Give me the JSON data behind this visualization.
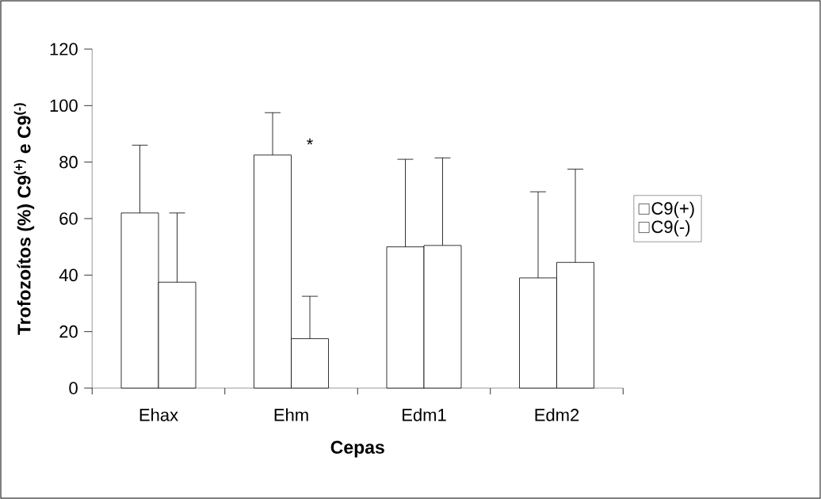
{
  "chart_data": {
    "type": "bar",
    "xlabel": "Cepas",
    "ylabel": "Trofozoítos (%) C9$^{(+)}$ e C9$^{(-)}$",
    "categories": [
      "Ehax",
      "Ehm",
      "Edm1",
      "Edm2"
    ],
    "series": [
      {
        "name": "C9(+)",
        "color": "#ffffff",
        "values": [
          62,
          82.5,
          50,
          39
        ],
        "errors": [
          24,
          15,
          31,
          30.5
        ]
      },
      {
        "name": "C9(-)",
        "color": "#ffffff",
        "values": [
          37.5,
          17.5,
          50.5,
          44.5
        ],
        "errors": [
          24.5,
          15,
          31,
          33
        ]
      }
    ],
    "ylim": [
      0,
      120
    ],
    "yticks": [
      0,
      20,
      40,
      60,
      80,
      100,
      120
    ],
    "annotations": [
      {
        "text": "*",
        "x": "Ehm",
        "y": 82
      }
    ],
    "grid": false,
    "legend": "right"
  }
}
